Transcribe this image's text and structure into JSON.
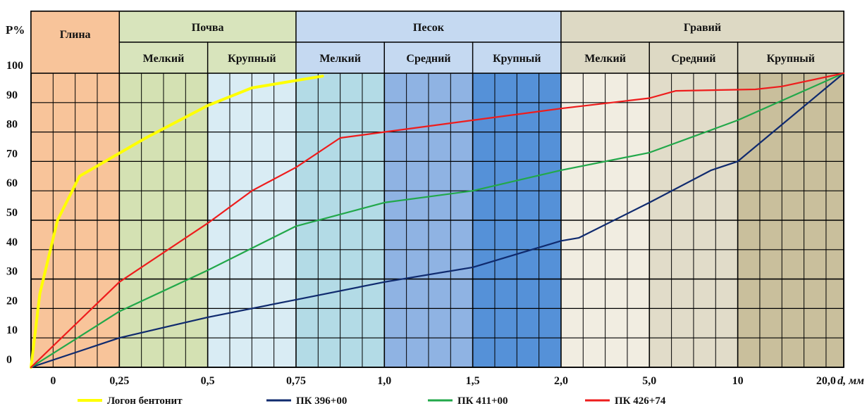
{
  "chart_data": {
    "type": "line",
    "y_axis_title": "P%",
    "x_axis_title": "d, мм",
    "ylim": [
      0,
      100
    ],
    "y_ticks": [
      "0",
      "10",
      "20",
      "30",
      "40",
      "50",
      "60",
      "70",
      "80",
      "90",
      "100"
    ],
    "x_ticks": [
      "0",
      "0,25",
      "0,5",
      "0,75",
      "1,0",
      "1,5",
      "2,0",
      "5,0",
      "10",
      "20,0"
    ],
    "x_tick_positions": [
      0.25,
      1,
      2,
      3,
      4,
      5,
      6,
      7,
      8,
      9
    ],
    "x_range": [
      0,
      9.2
    ],
    "grid": true,
    "legend_position": "bottom",
    "zones": [
      {
        "name": "Глина",
        "from": 0,
        "to": 1,
        "color": "#f8c49a"
      },
      {
        "name": "Почва",
        "subzones": [
          {
            "name": "Мелкий",
            "from": 1,
            "to": 2,
            "color": "#d4e1b3"
          },
          {
            "name": "Крупный",
            "from": 2,
            "to": 3,
            "color": "#d9ecf4"
          }
        ]
      },
      {
        "name": "Песок",
        "subzones": [
          {
            "name": "Мелкий",
            "from": 3,
            "to": 4,
            "color": "#b3dbe6"
          },
          {
            "name": "Средний",
            "from": 4,
            "to": 5,
            "color": "#8fb3e3"
          },
          {
            "name": "Крупный",
            "from": 5,
            "to": 6,
            "color": "#5591d8"
          }
        ]
      },
      {
        "name": "Гравий",
        "subzones": [
          {
            "name": "Мелкий",
            "from": 6,
            "to": 7,
            "color": "#f1ede1"
          },
          {
            "name": "Средний",
            "from": 7,
            "to": 8,
            "color": "#e1dcc9"
          },
          {
            "name": "Крупный",
            "from": 8,
            "to": 9.2,
            "color": "#c9bf9c"
          }
        ]
      }
    ],
    "zone_header_colors": {
      "Почва": "#d8e4bc",
      "Песок": "#c5d9f1",
      "Гравий": "#ddd9c4",
      "Глина": "#f8c49a"
    },
    "series": [
      {
        "name": "Логон бентонит",
        "color": "#ffff00",
        "x": [
          0,
          0.1,
          0.3,
          0.55,
          1.3,
          2,
          2.5,
          3.3
        ],
        "y": [
          0,
          25,
          50,
          65,
          78,
          89,
          95,
          99
        ]
      },
      {
        "name": "ПК 396+00",
        "color": "#0f2a6e",
        "x": [
          0,
          1,
          2,
          3,
          4,
          5,
          6,
          6.2,
          7,
          7.7,
          8,
          9.2
        ],
        "y": [
          0,
          10,
          17,
          23,
          29,
          34,
          43,
          44,
          56,
          67,
          70,
          100
        ]
      },
      {
        "name": "ПК 411+00",
        "color": "#22a84a",
        "x": [
          0,
          1,
          2,
          3,
          4,
          5,
          6,
          7,
          8,
          9.2
        ],
        "y": [
          0,
          19,
          33,
          48,
          56,
          60,
          67,
          73,
          84,
          100
        ]
      },
      {
        "name": "ПК 426+74",
        "color": "#ee1c1c",
        "x": [
          0,
          1,
          2,
          2.5,
          3,
          3.5,
          4,
          5,
          6,
          7,
          7.3,
          8.2,
          8.5,
          9.2
        ],
        "y": [
          0,
          29,
          49,
          60,
          68,
          78,
          80,
          84,
          88,
          91.5,
          94,
          94.5,
          95.5,
          100
        ]
      }
    ]
  }
}
